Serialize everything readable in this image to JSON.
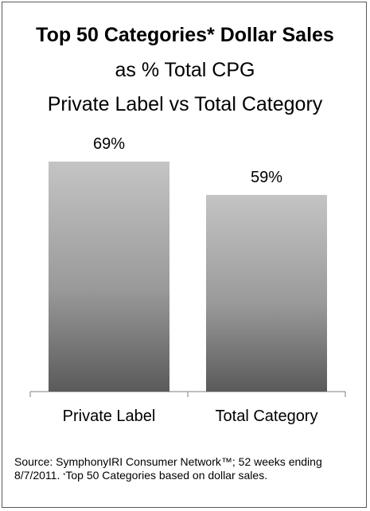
{
  "title": {
    "line1": "Top 50 Categories* Dollar Sales",
    "line2": "as % Total CPG",
    "line3": "Private Label vs Total Category"
  },
  "source": {
    "text_before": "Source: SymphonyIRI Consumer Network™; 52 weeks ending 8/7/2011. ",
    "mark": "*",
    "text_after": "Top 50 Categories based on dollar sales."
  },
  "chart_data": {
    "type": "bar",
    "categories": [
      "Private Label",
      "Total Category"
    ],
    "values": [
      69,
      59
    ],
    "data_labels": [
      "69%",
      "59%"
    ],
    "ylim": [
      0,
      69
    ],
    "grid": false,
    "legend": false
  }
}
